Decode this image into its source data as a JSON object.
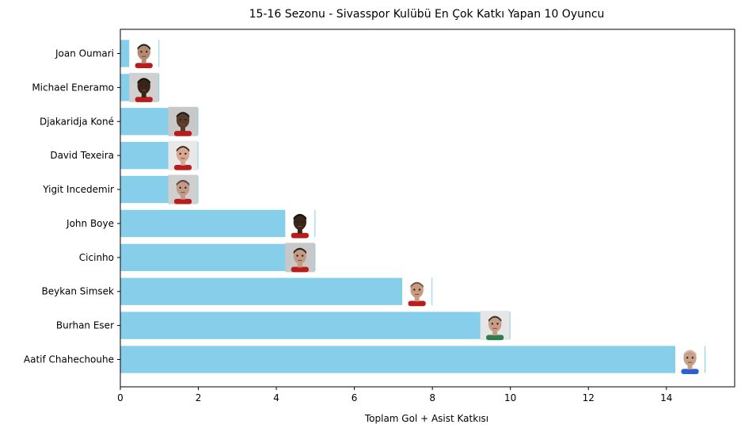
{
  "chart_data": {
    "type": "bar",
    "orientation": "horizontal",
    "title": "15-16 Sezonu - Sivasspor Kulübü En Çok Katkı Yapan 10 Oyuncu",
    "xlabel": "Toplam Gol + Asist Katkısı",
    "ylabel": "",
    "xlim": [
      0,
      15.75
    ],
    "xticks": [
      0,
      2,
      4,
      6,
      8,
      10,
      12,
      14
    ],
    "grid": false,
    "bar_color": "#87CEEB",
    "categories": [
      "Aatif Chahechouhe",
      "Burhan Eser",
      "Beykan Simsek",
      "Cicinho",
      "John Boye",
      "Yigit Incedemir",
      "David Texeira",
      "Djakaridja Koné",
      "Michael Eneramo",
      "Joan Oumari"
    ],
    "values": [
      15,
      10,
      8,
      5,
      5,
      2,
      2,
      2,
      1,
      1
    ],
    "player_photos": [
      {
        "skin": "#c9a08a",
        "hair": "#d8b9a6",
        "shirt": "#2f5fd0",
        "bg": "#ffffff"
      },
      {
        "skin": "#c79d86",
        "hair": "#3a2f28",
        "shirt": "#2e7d4f",
        "bg": "#e6e6e6"
      },
      {
        "skin": "#c99a80",
        "hair": "#6b5a4a",
        "shirt": "#b91c1c",
        "bg": "#ffffff"
      },
      {
        "skin": "#c49a82",
        "hair": "#222222",
        "shirt": "#b91c1c",
        "bg": "#c8c8c8"
      },
      {
        "skin": "#3b2418",
        "hair": "#111111",
        "shirt": "#b91c1c",
        "bg": "#ffffff"
      },
      {
        "skin": "#c39a86",
        "hair": "#5a4a3c",
        "shirt": "#b91c1c",
        "bg": "#cfcfcf"
      },
      {
        "skin": "#d9a893",
        "hair": "#3a2a20",
        "shirt": "#b91c1c",
        "bg": "#e8e8e8"
      },
      {
        "skin": "#5a3a2a",
        "hair": "#1a1a1a",
        "shirt": "#b91c1c",
        "bg": "#c8c8c8"
      },
      {
        "skin": "#3a2418",
        "hair": "#111111",
        "shirt": "#b91c1c",
        "bg": "#d0d0d0"
      },
      {
        "skin": "#b48a72",
        "hair": "#1c1c1c",
        "shirt": "#b91c1c",
        "bg": "#ffffff"
      }
    ]
  }
}
